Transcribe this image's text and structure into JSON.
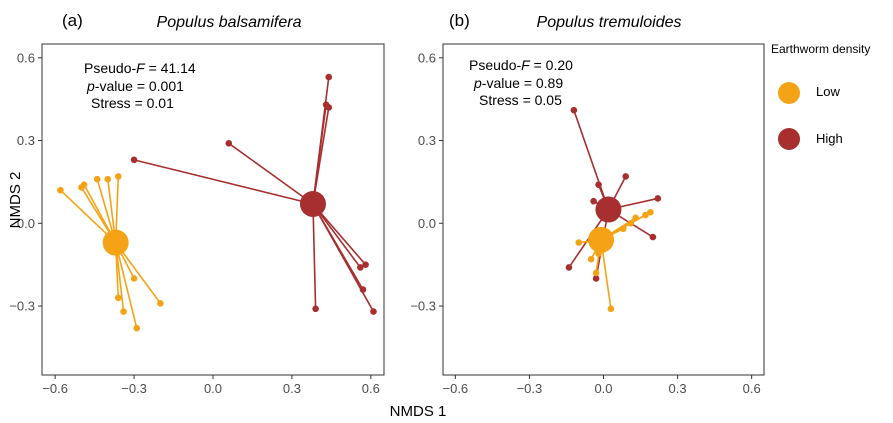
{
  "figure": {
    "xlabel": "NMDS 1",
    "ylabel": "NMDS 2",
    "legend": {
      "title": "Earthworm density",
      "placement": "right",
      "entries": [
        {
          "label": "Low",
          "color": "#F5A316"
        },
        {
          "label": "High",
          "color": "#A72F2F"
        }
      ]
    }
  },
  "chart_data": [
    {
      "type": "scatter",
      "tag": "(a)",
      "title": "Populus balsamifera",
      "stats": {
        "pseudo_f_prefix": "Pseudo-",
        "pseudo_f_symbol": "F",
        "pseudo_f_value": " = 41.14",
        "p_symbol": "p",
        "p_value": "-value = 0.001",
        "stress": "Stress = 0.01"
      },
      "xlim": [
        -0.65,
        0.65
      ],
      "ylim": [
        -0.55,
        0.65
      ],
      "xticks": [
        -0.6,
        -0.3,
        0.0,
        0.3,
        0.6
      ],
      "xtick_labels": [
        "−0.6",
        "−0.3",
        "0.0",
        "0.3",
        "0.6"
      ],
      "yticks": [
        -0.3,
        0.0,
        0.3,
        0.6
      ],
      "ytick_labels": [
        "−0.3",
        "0.0",
        "0.3",
        "0.6"
      ],
      "grid": false,
      "series": [
        {
          "name": "Low",
          "color": "#F5A316",
          "centroid": [
            -0.37,
            -0.07
          ],
          "points": [
            [
              -0.58,
              0.12
            ],
            [
              -0.5,
              0.13
            ],
            [
              -0.49,
              0.14
            ],
            [
              -0.44,
              0.16
            ],
            [
              -0.4,
              0.16
            ],
            [
              -0.36,
              0.17
            ],
            [
              -0.3,
              -0.2
            ],
            [
              -0.2,
              -0.29
            ],
            [
              -0.36,
              -0.27
            ],
            [
              -0.34,
              -0.32
            ],
            [
              -0.29,
              -0.38
            ]
          ]
        },
        {
          "name": "High",
          "color": "#A72F2F",
          "centroid": [
            0.38,
            0.07
          ],
          "points": [
            [
              -0.3,
              0.23
            ],
            [
              0.06,
              0.29
            ],
            [
              0.44,
              0.53
            ],
            [
              0.43,
              0.43
            ],
            [
              0.44,
              0.42
            ],
            [
              0.39,
              -0.31
            ],
            [
              0.56,
              -0.16
            ],
            [
              0.58,
              -0.15
            ],
            [
              0.57,
              -0.24
            ],
            [
              0.61,
              -0.32
            ]
          ]
        }
      ]
    },
    {
      "type": "scatter",
      "tag": "(b)",
      "title": "Populus tremuloides",
      "stats": {
        "pseudo_f_prefix": "Pseudo-",
        "pseudo_f_symbol": "F",
        "pseudo_f_value": " = 0.20",
        "p_symbol": "p",
        "p_value": "-value = 0.89",
        "stress": "Stress = 0.05"
      },
      "xlim": [
        -0.65,
        0.65
      ],
      "ylim": [
        -0.55,
        0.65
      ],
      "xticks": [
        -0.6,
        -0.3,
        0.0,
        0.3,
        0.6
      ],
      "xtick_labels": [
        "−0.6",
        "−0.3",
        "0.0",
        "0.3",
        "0.6"
      ],
      "yticks": [
        -0.3,
        0.0,
        0.3,
        0.6
      ],
      "ytick_labels": [
        "−0.3",
        "0.0",
        "0.3",
        "0.6"
      ],
      "grid": false,
      "series": [
        {
          "name": "High",
          "color": "#A72F2F",
          "centroid": [
            0.02,
            0.05
          ],
          "points": [
            [
              -0.12,
              0.41
            ],
            [
              -0.02,
              0.14
            ],
            [
              0.09,
              0.17
            ],
            [
              -0.04,
              0.08
            ],
            [
              0.22,
              0.09
            ],
            [
              0.2,
              -0.05
            ],
            [
              -0.14,
              -0.16
            ],
            [
              -0.03,
              -0.2
            ]
          ]
        },
        {
          "name": "Low",
          "color": "#F5A316",
          "centroid": [
            -0.01,
            -0.06
          ],
          "points": [
            [
              0.19,
              0.04
            ],
            [
              0.17,
              0.03
            ],
            [
              0.13,
              0.02
            ],
            [
              0.11,
              0.0
            ],
            [
              0.08,
              -0.02
            ],
            [
              -0.1,
              -0.07
            ],
            [
              -0.05,
              -0.13
            ],
            [
              -0.03,
              -0.18
            ],
            [
              -0.02,
              -0.11
            ],
            [
              0.03,
              -0.31
            ]
          ]
        }
      ]
    }
  ]
}
